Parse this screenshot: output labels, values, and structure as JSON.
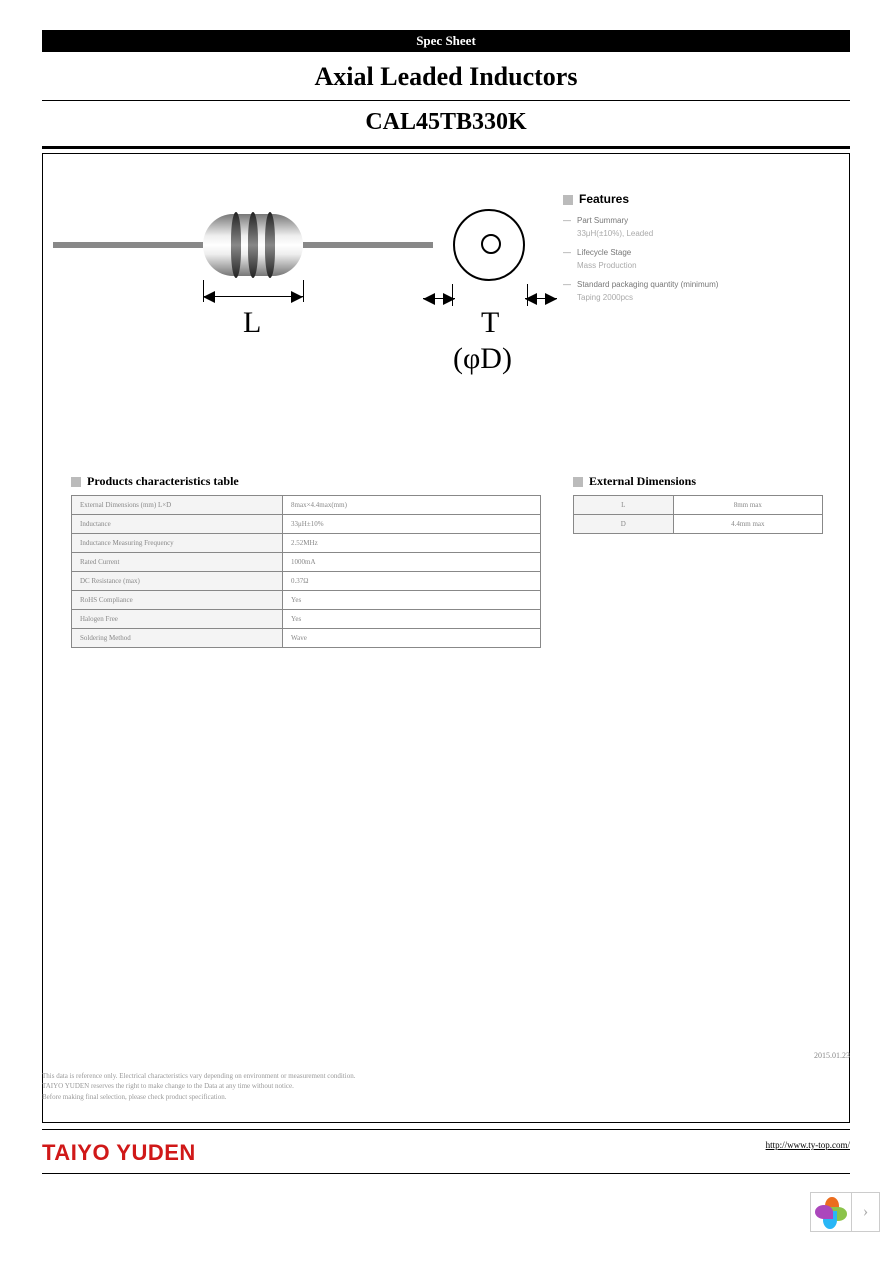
{
  "banner": "Spec Sheet",
  "category": "Axial Leaded Inductors",
  "part_number": "CAL45TB330K",
  "diagram": {
    "length_label": "L",
    "thickness_label": "T",
    "diameter_label": "(φD)"
  },
  "features": {
    "title": "Features",
    "items": [
      {
        "label": "Part Summary",
        "value": "33μH(±10%), Leaded"
      },
      {
        "label": "Lifecycle Stage",
        "value": "Mass Production"
      },
      {
        "label": "Standard packaging quantity (minimum)",
        "value": "Taping 2000pcs"
      }
    ]
  },
  "char_table": {
    "title": "Products characteristics table",
    "rows": [
      {
        "k": "External Dimensions (mm) L×D",
        "v": "8max×4.4max(mm)"
      },
      {
        "k": "Inductance",
        "v": "33μH±10%"
      },
      {
        "k": "Inductance Measuring Frequency",
        "v": "2.52MHz"
      },
      {
        "k": "Rated Current",
        "v": "1000mA"
      },
      {
        "k": "DC Resistance (max)",
        "v": "0.37Ω"
      },
      {
        "k": "RoHS Compliance",
        "v": "Yes"
      },
      {
        "k": "Halogen Free",
        "v": "Yes"
      },
      {
        "k": "Soldering Method",
        "v": "Wave"
      }
    ]
  },
  "dim_table": {
    "title": "External Dimensions",
    "rows": [
      {
        "k": "L",
        "v": "8mm max"
      },
      {
        "k": "D",
        "v": "4.4mm max"
      }
    ]
  },
  "date": "2015.01.23",
  "disclaimer": [
    "This data is reference only. Electrical characteristics vary depending on environment or measurement condition.",
    "TAIYO YUDEN reserves the right to make change to the Data at any time without notice.",
    "Before making final selection, please check product specification."
  ],
  "brand": "TAIYO YUDEN",
  "url": "http://www.ty-top.com/",
  "colors": {
    "brand": "#d01818",
    "petals": [
      "#ec6d1e",
      "#8bc34a",
      "#29b6f6",
      "#ab47bc"
    ]
  }
}
